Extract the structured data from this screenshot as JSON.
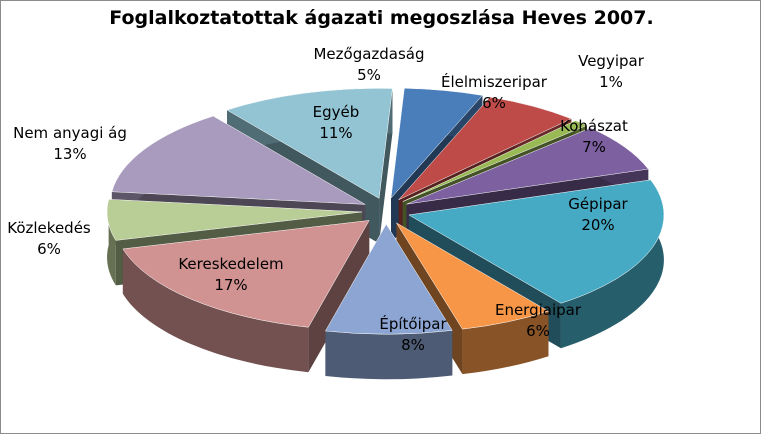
{
  "chart_data": {
    "type": "pie",
    "title": "Foglalkoztatottak ágazati megoszlása Heves 2007.",
    "three_d": true,
    "exploded": true,
    "slices": [
      {
        "name": "Mezőgazdaság",
        "value": 5,
        "label": "5%",
        "color": "#4a7ebb"
      },
      {
        "name": "Élelmiszeripar",
        "value": 6,
        "label": "6%",
        "color": "#be4b48"
      },
      {
        "name": "Vegyipar",
        "value": 1,
        "label": "1%",
        "color": "#98b954"
      },
      {
        "name": "Kohászat",
        "value": 7,
        "label": "7%",
        "color": "#7d60a0"
      },
      {
        "name": "Gépipar",
        "value": 20,
        "label": "20%",
        "color": "#46aac5"
      },
      {
        "name": "Energiaipar",
        "value": 6,
        "label": "6%",
        "color": "#f79646"
      },
      {
        "name": "Építőipar",
        "value": 8,
        "label": "8%",
        "color": "#8ca5d2"
      },
      {
        "name": "Kereskedelem",
        "value": 17,
        "label": "17%",
        "color": "#d19392"
      },
      {
        "name": "Közlekedés",
        "value": 6,
        "label": "6%",
        "color": "#b9cd96"
      },
      {
        "name": "Nem anyagi ág",
        "value": 13,
        "label": "13%",
        "color": "#a99bbd"
      },
      {
        "name": "Egyéb",
        "value": 11,
        "label": "11%",
        "color": "#92c4d4"
      }
    ]
  }
}
